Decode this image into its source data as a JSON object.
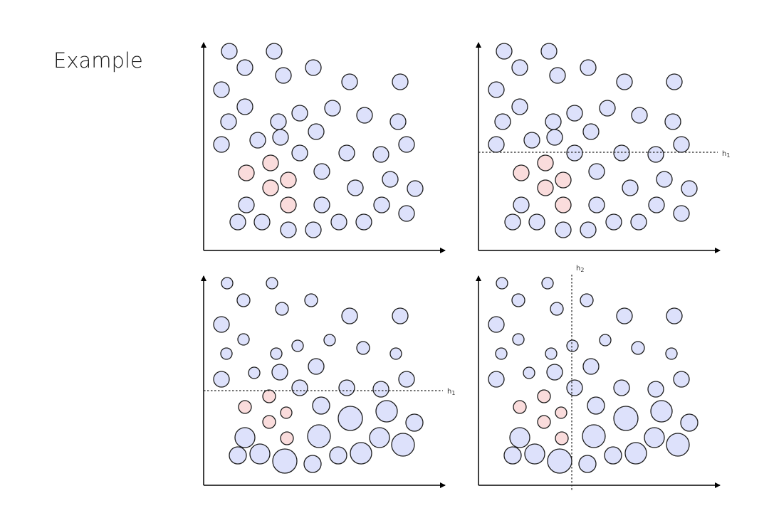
{
  "title": "Example",
  "colors": {
    "majority": "#dde1fb",
    "minority": "#fadcdc",
    "stroke": "#1c1c1c"
  },
  "panels": [
    {
      "name": "panel-1",
      "split_labels": []
    },
    {
      "name": "panel-2",
      "split_labels": [
        "h1"
      ]
    },
    {
      "name": "panel-3",
      "split_labels": [
        "h1"
      ]
    },
    {
      "name": "panel-4",
      "split_labels": [
        "h2"
      ]
    }
  ]
}
